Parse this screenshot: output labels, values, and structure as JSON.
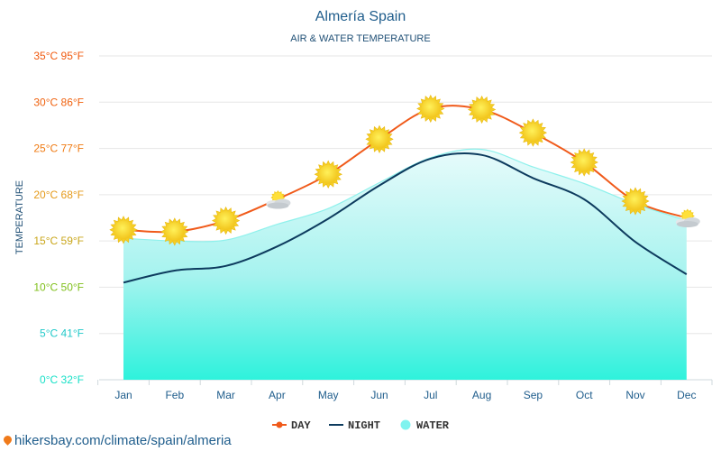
{
  "chart_data": {
    "type": "line",
    "title": "Almería Spain",
    "subtitle": "AIR & WATER TEMPERATURE",
    "ylabel": "TEMPERATURE",
    "categories": [
      "Jan",
      "Feb",
      "Mar",
      "Apr",
      "May",
      "Jun",
      "Jul",
      "Aug",
      "Sep",
      "Oct",
      "Nov",
      "Dec"
    ],
    "ylim": [
      0,
      35
    ],
    "yticks": [
      {
        "value": 0,
        "label": "0°C 32°F",
        "color": "#17e0c7"
      },
      {
        "value": 5,
        "label": "5°C 41°F",
        "color": "#21c9c9"
      },
      {
        "value": 10,
        "label": "10°C 50°F",
        "color": "#7fbf1a"
      },
      {
        "value": 15,
        "label": "15°C 59°F",
        "color": "#c9a61a"
      },
      {
        "value": 20,
        "label": "20°C 68°F",
        "color": "#e59a1a"
      },
      {
        "value": 25,
        "label": "25°C 77°F",
        "color": "#ef7a12"
      },
      {
        "value": 30,
        "label": "30°C 86°F",
        "color": "#f0620f"
      },
      {
        "value": 35,
        "label": "35°C 95°F",
        "color": "#f05a0f"
      }
    ],
    "grid": true,
    "legend_position": "bottom",
    "series": [
      {
        "name": "DAY",
        "color": "#f05a1a",
        "values": [
          16.2,
          16.0,
          17.2,
          19.5,
          22.2,
          26.0,
          29.3,
          29.2,
          26.7,
          23.5,
          19.3,
          17.5
        ],
        "icons": [
          "sun",
          "sun",
          "sun",
          "partly-cloudy",
          "sun",
          "sun",
          "sun",
          "sun",
          "sun",
          "sun",
          "sun",
          "partly-cloudy"
        ]
      },
      {
        "name": "NIGHT",
        "color": "#0d3b5e",
        "values": [
          10.5,
          11.8,
          12.3,
          14.4,
          17.4,
          21.0,
          23.9,
          24.3,
          21.8,
          19.5,
          14.9,
          11.4
        ]
      },
      {
        "name": "WATER",
        "color": "#7ff3ef",
        "values": [
          15.3,
          15.0,
          15.1,
          16.8,
          18.5,
          21.3,
          24.0,
          24.9,
          23.0,
          21.2,
          19.0,
          17.2
        ]
      }
    ]
  },
  "footer": {
    "source": "hikersbay.com/climate/spain/almeria"
  }
}
